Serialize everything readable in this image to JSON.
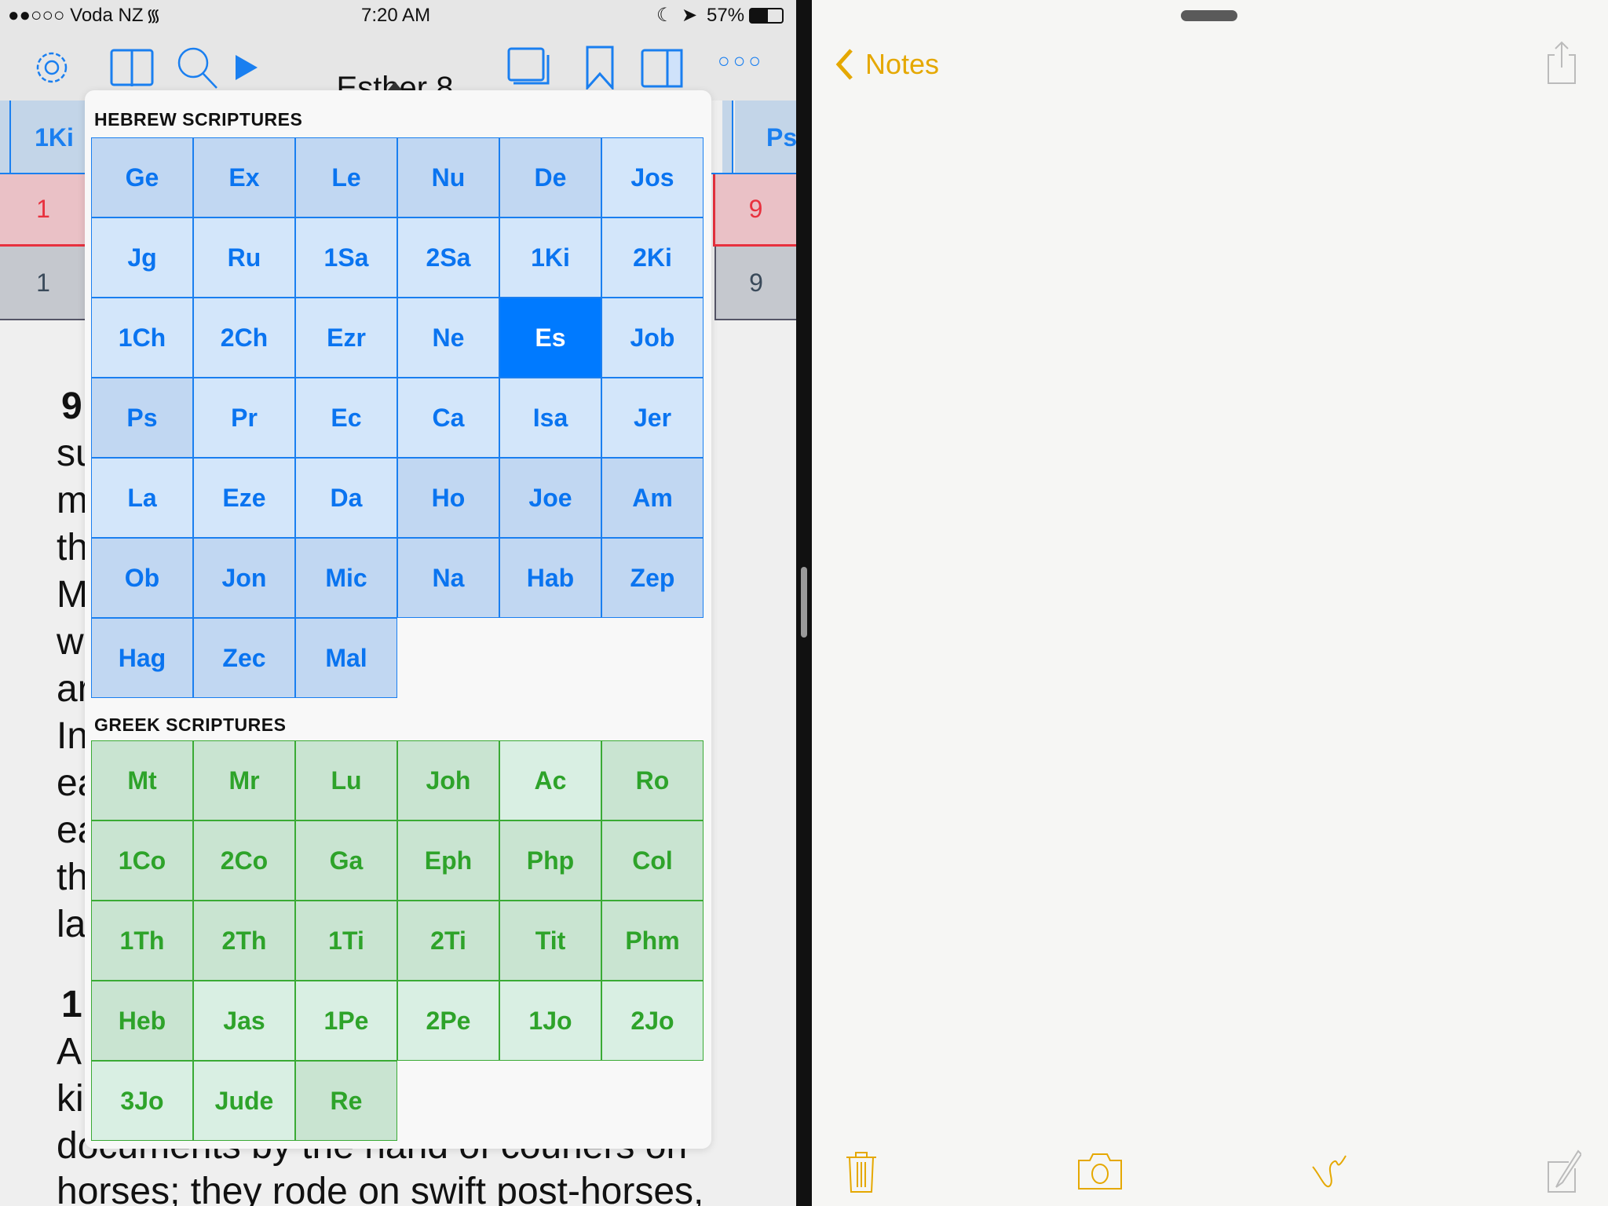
{
  "status": {
    "carrier": "●●○○○ Voda NZ",
    "time": "7:20 AM",
    "battery": "57%"
  },
  "toolbar": {
    "title": "Esther 8",
    "more": "○○○"
  },
  "tabs": {
    "left_book": "1Ki",
    "right_book": "Ps",
    "left_chapter": "1",
    "right_chapter": "9",
    "left_verse": "1",
    "right_verse": "9"
  },
  "text_lines": [
    "9",
    "su",
    "m",
    "th",
    "M",
    "w",
    "ar",
    "In",
    "ea",
    "ea",
    "th",
    "la",
    "1",
    "A",
    "ki",
    "documents by the hand of couriers on",
    "horses; they rode on swift post-horses,"
  ],
  "hebrew": {
    "header": "HEBREW SCRIPTURES",
    "books": [
      {
        "n": "Ge",
        "s": "d"
      },
      {
        "n": "Ex",
        "s": "d"
      },
      {
        "n": "Le",
        "s": "d"
      },
      {
        "n": "Nu",
        "s": "d"
      },
      {
        "n": "De",
        "s": "d"
      },
      {
        "n": "Jos",
        "s": "l"
      },
      {
        "n": "Jg",
        "s": "l"
      },
      {
        "n": "Ru",
        "s": "l"
      },
      {
        "n": "1Sa",
        "s": "l"
      },
      {
        "n": "2Sa",
        "s": "l"
      },
      {
        "n": "1Ki",
        "s": "l"
      },
      {
        "n": "2Ki",
        "s": "l"
      },
      {
        "n": "1Ch",
        "s": "l"
      },
      {
        "n": "2Ch",
        "s": "l"
      },
      {
        "n": "Ezr",
        "s": "l"
      },
      {
        "n": "Ne",
        "s": "l"
      },
      {
        "n": "Es",
        "s": "sel"
      },
      {
        "n": "Job",
        "s": "l"
      },
      {
        "n": "Ps",
        "s": "d"
      },
      {
        "n": "Pr",
        "s": "l"
      },
      {
        "n": "Ec",
        "s": "l"
      },
      {
        "n": "Ca",
        "s": "l"
      },
      {
        "n": "Isa",
        "s": "l"
      },
      {
        "n": "Jer",
        "s": "l"
      },
      {
        "n": "La",
        "s": "l"
      },
      {
        "n": "Eze",
        "s": "l"
      },
      {
        "n": "Da",
        "s": "l"
      },
      {
        "n": "Ho",
        "s": "d"
      },
      {
        "n": "Joe",
        "s": "d"
      },
      {
        "n": "Am",
        "s": "d"
      },
      {
        "n": "Ob",
        "s": "d"
      },
      {
        "n": "Jon",
        "s": "d"
      },
      {
        "n": "Mic",
        "s": "d"
      },
      {
        "n": "Na",
        "s": "d"
      },
      {
        "n": "Hab",
        "s": "d"
      },
      {
        "n": "Zep",
        "s": "d"
      },
      {
        "n": "Hag",
        "s": "d"
      },
      {
        "n": "Zec",
        "s": "d"
      },
      {
        "n": "Mal",
        "s": "d"
      }
    ]
  },
  "greek": {
    "header": "GREEK SCRIPTURES",
    "books": [
      {
        "n": "Mt",
        "s": "d"
      },
      {
        "n": "Mr",
        "s": "d"
      },
      {
        "n": "Lu",
        "s": "d"
      },
      {
        "n": "Joh",
        "s": "d"
      },
      {
        "n": "Ac",
        "s": "l"
      },
      {
        "n": "Ro",
        "s": "d"
      },
      {
        "n": "1Co",
        "s": "d"
      },
      {
        "n": "2Co",
        "s": "d"
      },
      {
        "n": "Ga",
        "s": "d"
      },
      {
        "n": "Eph",
        "s": "d"
      },
      {
        "n": "Php",
        "s": "d"
      },
      {
        "n": "Col",
        "s": "d"
      },
      {
        "n": "1Th",
        "s": "d"
      },
      {
        "n": "2Th",
        "s": "d"
      },
      {
        "n": "1Ti",
        "s": "d"
      },
      {
        "n": "2Ti",
        "s": "d"
      },
      {
        "n": "Tit",
        "s": "d"
      },
      {
        "n": "Phm",
        "s": "d"
      },
      {
        "n": "Heb",
        "s": "d"
      },
      {
        "n": "Jas",
        "s": "l"
      },
      {
        "n": "1Pe",
        "s": "l"
      },
      {
        "n": "2Pe",
        "s": "l"
      },
      {
        "n": "1Jo",
        "s": "l"
      },
      {
        "n": "2Jo",
        "s": "l"
      },
      {
        "n": "3Jo",
        "s": "l"
      },
      {
        "n": "Jude",
        "s": "l"
      },
      {
        "n": "Re",
        "s": "d"
      }
    ]
  },
  "colors": {
    "heb_dark": "#c1d7f2",
    "heb_light": "#d3e6fa",
    "selected": "#007aff",
    "grk_dark": "#c9e4d1",
    "grk_light": "#d9efe3",
    "notes_accent": "#e5a800"
  },
  "notes": {
    "back_label": "Notes"
  }
}
